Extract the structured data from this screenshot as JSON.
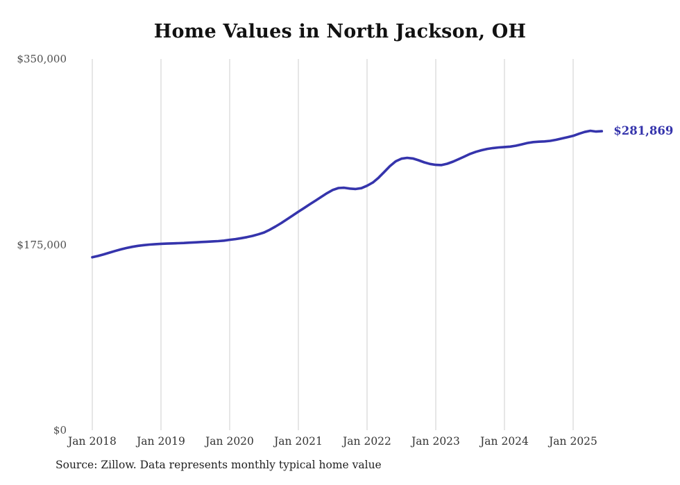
{
  "title": "Home Values in North Jackson, OH",
  "source_note": "Source: Zillow. Data represents monthly typical home value",
  "end_label": "$281,869",
  "colors": {
    "line": "#3534ac",
    "end_label": "#3534ac",
    "grid": "#cccccc",
    "y_tick": "#4d4d4d",
    "x_tick": "#333333",
    "title": "#111111",
    "source": "#1f1f1f",
    "background": "#ffffff"
  },
  "chart_data": {
    "type": "line",
    "title": "Home Values in North Jackson, OH",
    "ylabel": "",
    "xlabel": "",
    "ylim": [
      0,
      350000
    ],
    "grid": "vertical-only",
    "legend_position": "none",
    "series_name": "Typical home value",
    "end_annotation": "$281,869",
    "x": [
      "2018-01",
      "2018-02",
      "2018-03",
      "2018-04",
      "2018-05",
      "2018-06",
      "2018-07",
      "2018-08",
      "2018-09",
      "2018-10",
      "2018-11",
      "2018-12",
      "2019-01",
      "2019-02",
      "2019-03",
      "2019-04",
      "2019-05",
      "2019-06",
      "2019-07",
      "2019-08",
      "2019-09",
      "2019-10",
      "2019-11",
      "2019-12",
      "2020-01",
      "2020-02",
      "2020-03",
      "2020-04",
      "2020-05",
      "2020-06",
      "2020-07",
      "2020-08",
      "2020-09",
      "2020-10",
      "2020-11",
      "2020-12",
      "2021-01",
      "2021-02",
      "2021-03",
      "2021-04",
      "2021-05",
      "2021-06",
      "2021-07",
      "2021-08",
      "2021-09",
      "2021-10",
      "2021-11",
      "2021-12",
      "2022-01",
      "2022-02",
      "2022-03",
      "2022-04",
      "2022-05",
      "2022-06",
      "2022-07",
      "2022-08",
      "2022-09",
      "2022-10",
      "2022-11",
      "2022-12",
      "2023-01",
      "2023-02",
      "2023-03",
      "2023-04",
      "2023-05",
      "2023-06",
      "2023-07",
      "2023-08",
      "2023-09",
      "2023-10",
      "2023-11",
      "2023-12",
      "2024-01",
      "2024-02",
      "2024-03",
      "2024-04",
      "2024-05",
      "2024-06",
      "2024-07",
      "2024-08",
      "2024-09",
      "2024-10",
      "2024-11",
      "2024-12",
      "2025-01",
      "2025-02",
      "2025-03",
      "2025-04",
      "2025-05",
      "2025-06"
    ],
    "values": [
      163000,
      164300,
      165800,
      167400,
      169000,
      170500,
      171800,
      172900,
      173800,
      174500,
      175000,
      175400,
      175700,
      175900,
      176100,
      176300,
      176500,
      176800,
      177100,
      177400,
      177700,
      178000,
      178300,
      178700,
      179500,
      180200,
      181000,
      182000,
      183200,
      184700,
      186400,
      189000,
      192000,
      195300,
      198800,
      202400,
      206000,
      209500,
      213000,
      216500,
      220000,
      223500,
      226500,
      228300,
      228600,
      227800,
      227400,
      228200,
      230500,
      233500,
      238000,
      243500,
      249000,
      253500,
      256000,
      256800,
      256200,
      254500,
      252500,
      251000,
      250200,
      250000,
      251200,
      253200,
      255500,
      258000,
      260500,
      262500,
      264000,
      265200,
      266000,
      266600,
      267000,
      267400,
      268200,
      269500,
      270800,
      271600,
      272000,
      272300,
      272800,
      273800,
      275000,
      276200,
      277500,
      279500,
      281200,
      282300,
      281600,
      281869
    ],
    "y_ticks": [
      {
        "value": 0,
        "label": "$0"
      },
      {
        "value": 175000,
        "label": "$175,000"
      },
      {
        "value": 350000,
        "label": "$350,000"
      }
    ],
    "x_ticks": [
      {
        "index": 0,
        "label": "Jan 2018"
      },
      {
        "index": 12,
        "label": "Jan 2019"
      },
      {
        "index": 24,
        "label": "Jan 2020"
      },
      {
        "index": 36,
        "label": "Jan 2021"
      },
      {
        "index": 48,
        "label": "Jan 2022"
      },
      {
        "index": 60,
        "label": "Jan 2023"
      },
      {
        "index": 72,
        "label": "Jan 2024"
      },
      {
        "index": 84,
        "label": "Jan 2025"
      }
    ]
  }
}
